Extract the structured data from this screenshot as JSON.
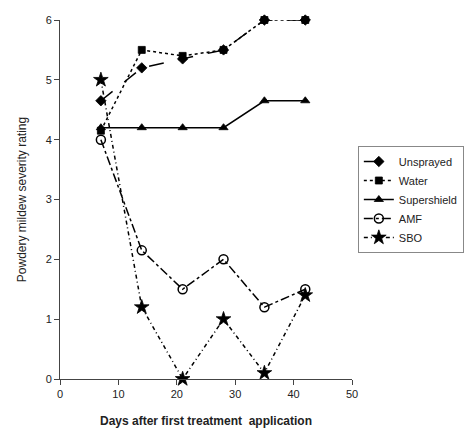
{
  "chart_data": {
    "type": "line",
    "xlabel": "Days after first treatment  application",
    "ylabel": "Powdery mildew severity rating",
    "x": [
      7,
      14,
      21,
      28,
      35,
      42
    ],
    "series": [
      {
        "name": "Unsprayed",
        "color": "#000000",
        "marker": "diamond",
        "line_style": "longdash",
        "values": [
          4.65,
          5.2,
          5.35,
          5.5,
          6.0,
          6.0
        ]
      },
      {
        "name": "Water",
        "color": "#000000",
        "marker": "square",
        "line_style": "dot",
        "values": [
          4.15,
          5.5,
          5.4,
          5.5,
          6.0,
          6.0
        ]
      },
      {
        "name": "Supershield",
        "color": "#000000",
        "marker": "triangle-up",
        "line_style": "solid",
        "values": [
          4.2,
          4.2,
          4.2,
          4.2,
          4.65,
          4.65
        ]
      },
      {
        "name": "AMF",
        "color": "#000000",
        "marker": "circle-open",
        "line_style": "dashdot",
        "values": [
          4.0,
          2.15,
          1.5,
          2.0,
          1.2,
          1.5
        ]
      },
      {
        "name": "SBO",
        "color": "#000000",
        "marker": "star",
        "line_style": "shortdashdot",
        "values": [
          5.0,
          1.2,
          0.0,
          1.0,
          0.1,
          1.4
        ]
      }
    ],
    "xlim": [
      0,
      50
    ],
    "xticks": [
      0,
      10,
      20,
      30,
      40,
      50
    ],
    "ylim": [
      0,
      6
    ],
    "yticks": [
      0,
      1,
      2,
      3,
      4,
      5,
      6
    ],
    "grid": false,
    "legend": "right"
  }
}
